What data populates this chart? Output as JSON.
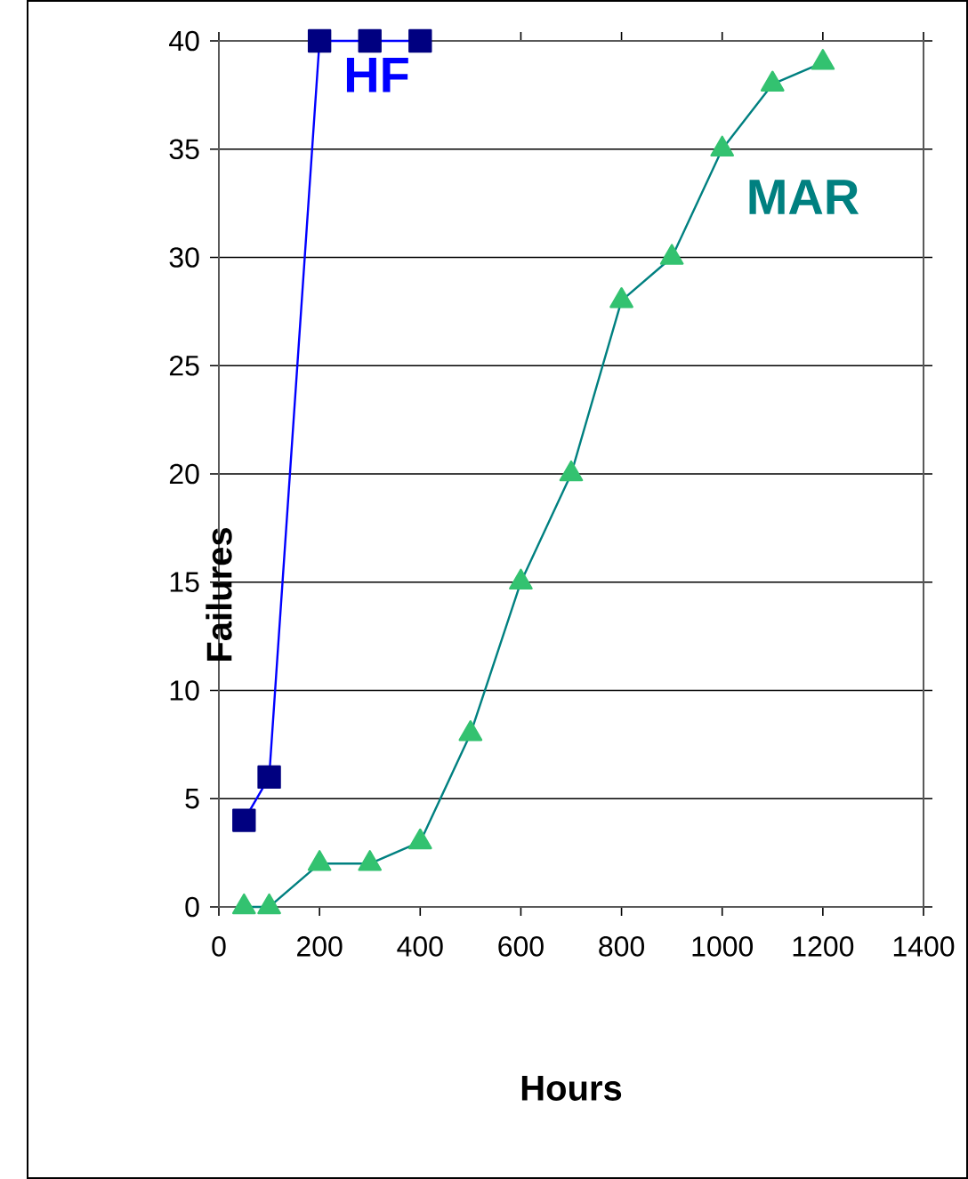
{
  "chart_data": {
    "type": "line",
    "xlabel": "Hours",
    "ylabel": "Failures",
    "xlim": [
      0,
      1400
    ],
    "xticks": [
      0,
      200,
      400,
      600,
      800,
      1000,
      1200,
      1400
    ],
    "ylim": [
      0,
      40
    ],
    "yticks": [
      0,
      5,
      10,
      15,
      20,
      25,
      30,
      35,
      40
    ],
    "grid": "y",
    "legend": false,
    "line_style": "solid",
    "series": [
      {
        "name": "HF",
        "color": "#0000ff",
        "marker": "square",
        "x": [
          50,
          100,
          200,
          300,
          400
        ],
        "values": [
          4,
          6,
          40,
          40,
          40
        ]
      },
      {
        "name": "MAR",
        "color": "#008080",
        "marker": "triangle",
        "x": [
          50,
          100,
          200,
          300,
          400,
          500,
          600,
          700,
          800,
          900,
          1000,
          1100,
          1200
        ],
        "values": [
          0,
          0,
          2,
          2,
          3,
          8,
          15,
          20,
          28,
          30,
          35,
          38,
          39
        ]
      }
    ]
  }
}
